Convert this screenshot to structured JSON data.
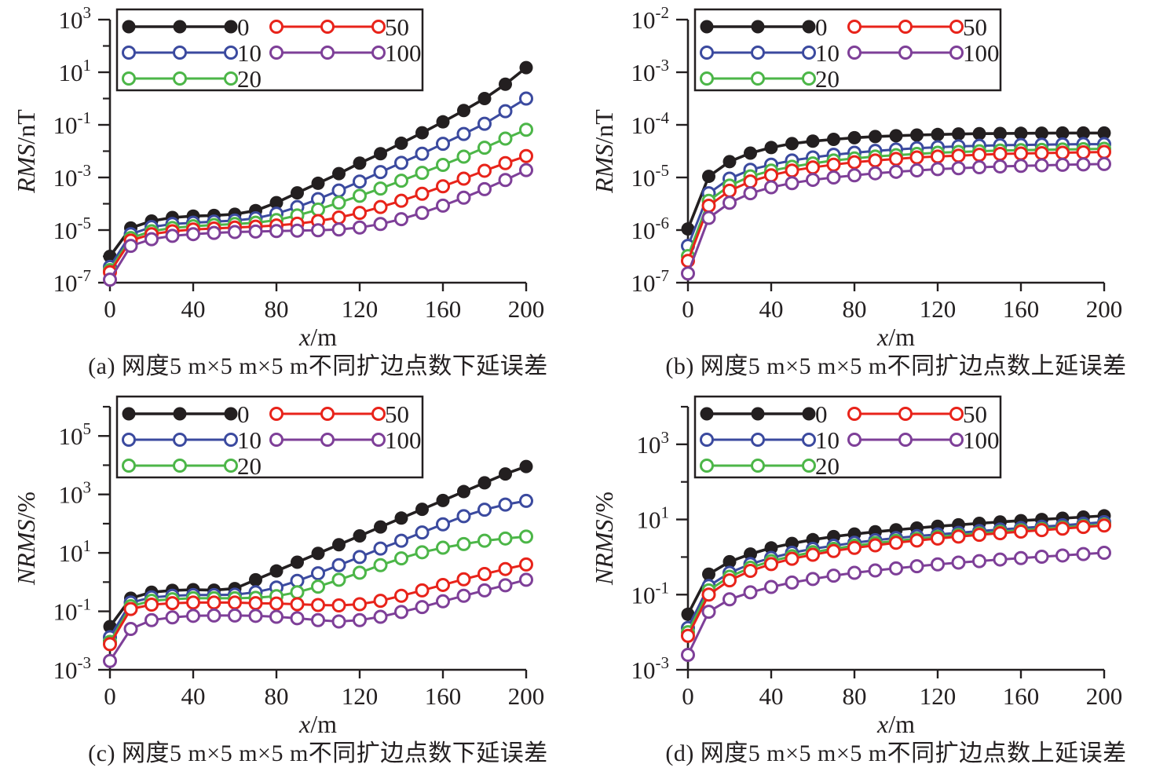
{
  "figure": {
    "background": "#ffffff",
    "axis_color": "#231f20"
  },
  "chart_data": [
    {
      "type": "line",
      "panel": "a",
      "caption": "(a) 网度5 m×5 m×5 m不同扩边点数下延误差",
      "xlabel_italic": "x",
      "xlabel_rest": "/m",
      "ylabel_italic": "RMS",
      "ylabel_rest": "/nT",
      "xlim": [
        0,
        200
      ],
      "xticks": [
        0,
        40,
        80,
        120,
        160,
        200
      ],
      "ylim_exponents": [
        -7,
        3
      ],
      "ytick_exponents": [
        3,
        1,
        -1,
        -3,
        -5,
        -7
      ],
      "yminor_exponents": [
        2,
        0,
        -2,
        -4,
        -6
      ],
      "grid": false,
      "legend_position": "top-left",
      "x": [
        0,
        10,
        20,
        30,
        40,
        50,
        60,
        70,
        80,
        90,
        100,
        110,
        120,
        130,
        140,
        150,
        160,
        170,
        180,
        190,
        200
      ],
      "series": [
        {
          "name": "0",
          "color": "#231f20",
          "marker": "filled",
          "values": [
            1e-06,
            1.2e-05,
            2.2e-05,
            3e-05,
            3.4e-05,
            3.6e-05,
            4e-05,
            5.5e-05,
            0.00011,
            0.00026,
            0.0006,
            0.0014,
            0.0035,
            0.008,
            0.02,
            0.05,
            0.13,
            0.35,
            1.0,
            3.5,
            15
          ]
        },
        {
          "name": "10",
          "color": "#3b4a9f",
          "marker": "open",
          "values": [
            4e-07,
            7e-06,
            1.3e-05,
            1.7e-05,
            1.9e-05,
            2.1e-05,
            2.3e-05,
            2.8e-05,
            4.2e-05,
            7.5e-05,
            0.00015,
            0.00032,
            0.0007,
            0.0016,
            0.0036,
            0.008,
            0.019,
            0.045,
            0.11,
            0.33,
            1.0
          ]
        },
        {
          "name": "20",
          "color": "#4cb648",
          "marker": "open",
          "values": [
            3e-07,
            5e-06,
            9e-06,
            1.2e-05,
            1.4e-05,
            1.55e-05,
            1.7e-05,
            1.9e-05,
            2.4e-05,
            3.6e-05,
            6e-05,
            0.00011,
            0.0002,
            0.00038,
            0.00075,
            0.0015,
            0.003,
            0.0062,
            0.0135,
            0.03,
            0.065
          ]
        },
        {
          "name": "50",
          "color": "#e8231a",
          "marker": "open",
          "values": [
            2.5e-07,
            4e-06,
            7e-06,
            9e-06,
            1.05e-05,
            1.15e-05,
            1.25e-05,
            1.35e-05,
            1.5e-05,
            1.75e-05,
            2.2e-05,
            3e-05,
            4.5e-05,
            7.5e-05,
            0.00013,
            0.00024,
            0.00046,
            0.0009,
            0.0018,
            0.0035,
            0.0065
          ]
        },
        {
          "name": "100",
          "color": "#7e3f98",
          "marker": "open",
          "values": [
            1.3e-07,
            2.5e-06,
            4.5e-06,
            6e-06,
            7e-06,
            7.8e-06,
            8.4e-06,
            8.8e-06,
            9.2e-06,
            9.5e-06,
            9.8e-06,
            1.05e-05,
            1.25e-05,
            1.7e-05,
            2.6e-05,
            4.5e-05,
            8.5e-05,
            0.00017,
            0.00036,
            0.0008,
            0.0019
          ]
        }
      ]
    },
    {
      "type": "line",
      "panel": "b",
      "caption": "(b) 网度5 m×5 m×5 m不同扩边点数上延误差",
      "xlabel_italic": "x",
      "xlabel_rest": "/m",
      "ylabel_italic": "RMS",
      "ylabel_rest": "/nT",
      "xlim": [
        0,
        200
      ],
      "xticks": [
        0,
        40,
        80,
        120,
        160,
        200
      ],
      "ylim_exponents": [
        -7,
        -2
      ],
      "ytick_exponents": [
        -2,
        -3,
        -4,
        -5,
        -6,
        -7
      ],
      "yminor_exponents": [],
      "grid": false,
      "legend_position": "top-left",
      "x": [
        0,
        10,
        20,
        30,
        40,
        50,
        60,
        70,
        80,
        90,
        100,
        110,
        120,
        130,
        140,
        150,
        160,
        170,
        180,
        190,
        200
      ],
      "series": [
        {
          "name": "0",
          "color": "#231f20",
          "marker": "filled",
          "values": [
            1.05e-06,
            1.05e-05,
            2e-05,
            2.9e-05,
            3.7e-05,
            4.4e-05,
            4.9e-05,
            5.3e-05,
            5.7e-05,
            6e-05,
            6.2e-05,
            6.4e-05,
            6.55e-05,
            6.7e-05,
            6.8e-05,
            6.85e-05,
            6.9e-05,
            6.95e-05,
            7e-05,
            7e-05,
            7e-05
          ]
        },
        {
          "name": "10",
          "color": "#3b4a9f",
          "marker": "open",
          "values": [
            5e-07,
            5e-06,
            9.5e-06,
            1.4e-05,
            1.75e-05,
            2.1e-05,
            2.4e-05,
            2.7e-05,
            2.95e-05,
            3.2e-05,
            3.4e-05,
            3.6e-05,
            3.75e-05,
            3.9e-05,
            4e-05,
            4.1e-05,
            4.15e-05,
            4.2e-05,
            4.25e-05,
            4.3e-05,
            4.3e-05
          ]
        },
        {
          "name": "20",
          "color": "#4cb648",
          "marker": "open",
          "values": [
            3.2e-07,
            3.6e-06,
            7e-06,
            1.05e-05,
            1.35e-05,
            1.6e-05,
            1.85e-05,
            2.1e-05,
            2.3e-05,
            2.5e-05,
            2.65e-05,
            2.8e-05,
            2.95e-05,
            3.05e-05,
            3.15e-05,
            3.25e-05,
            3.3e-05,
            3.35e-05,
            3.4e-05,
            3.45e-05,
            3.5e-05
          ]
        },
        {
          "name": "50",
          "color": "#e8231a",
          "marker": "open",
          "values": [
            2.6e-07,
            2.9e-06,
            5.6e-06,
            8.4e-06,
            1.1e-05,
            1.35e-05,
            1.55e-05,
            1.75e-05,
            1.95e-05,
            2.1e-05,
            2.25e-05,
            2.4e-05,
            2.5e-05,
            2.6e-05,
            2.7e-05,
            2.8e-05,
            2.85e-05,
            2.9e-05,
            2.95e-05,
            3e-05,
            3.05e-05
          ]
        },
        {
          "name": "100",
          "color": "#7e3f98",
          "marker": "open",
          "values": [
            1.5e-07,
            1.7e-06,
            3.3e-06,
            5e-06,
            6.5e-06,
            7.8e-06,
            9e-06,
            1e-05,
            1.1e-05,
            1.2e-05,
            1.28e-05,
            1.36e-05,
            1.44e-05,
            1.5e-05,
            1.56e-05,
            1.62e-05,
            1.66e-05,
            1.7e-05,
            1.74e-05,
            1.77e-05,
            1.8e-05
          ]
        }
      ]
    },
    {
      "type": "line",
      "panel": "c",
      "caption": "(c) 网度5 m×5 m×5 m不同扩边点数下延误差",
      "xlabel_italic": "x",
      "xlabel_rest": "/m",
      "ylabel_italic": "NRMS",
      "ylabel_rest": "/%",
      "xlim": [
        0,
        200
      ],
      "xticks": [
        0,
        40,
        80,
        120,
        160,
        200
      ],
      "ylim_exponents": [
        -3,
        6
      ],
      "ytick_exponents": [
        5,
        3,
        1,
        -1,
        -3
      ],
      "yminor_exponents": [
        6,
        4,
        2,
        0,
        -2
      ],
      "grid": false,
      "legend_position": "top-left",
      "x": [
        0,
        10,
        20,
        30,
        40,
        50,
        60,
        70,
        80,
        90,
        100,
        110,
        120,
        130,
        140,
        150,
        160,
        170,
        180,
        190,
        200
      ],
      "series": [
        {
          "name": "0",
          "color": "#231f20",
          "marker": "filled",
          "values": [
            0.03,
            0.28,
            0.45,
            0.52,
            0.55,
            0.53,
            0.6,
            1.2,
            2.4,
            4.8,
            9.6,
            19,
            38,
            77,
            155,
            310,
            620,
            1250,
            2500,
            5000,
            9000
          ]
        },
        {
          "name": "10",
          "color": "#3b4a9f",
          "marker": "open",
          "values": [
            0.013,
            0.2,
            0.3,
            0.34,
            0.36,
            0.36,
            0.37,
            0.45,
            0.65,
            1.1,
            2.0,
            3.8,
            7.2,
            14,
            26,
            50,
            95,
            180,
            300,
            450,
            600
          ]
        },
        {
          "name": "20",
          "color": "#4cb648",
          "marker": "open",
          "values": [
            0.009,
            0.15,
            0.23,
            0.26,
            0.28,
            0.28,
            0.28,
            0.29,
            0.33,
            0.45,
            0.7,
            1.2,
            2.1,
            3.8,
            6.5,
            10.5,
            15,
            20,
            26,
            31,
            36
          ]
        },
        {
          "name": "50",
          "color": "#e8231a",
          "marker": "open",
          "values": [
            0.0075,
            0.12,
            0.17,
            0.19,
            0.2,
            0.2,
            0.2,
            0.19,
            0.185,
            0.175,
            0.165,
            0.16,
            0.175,
            0.23,
            0.34,
            0.52,
            0.8,
            1.25,
            1.9,
            2.8,
            4.0
          ]
        },
        {
          "name": "100",
          "color": "#7e3f98",
          "marker": "open",
          "values": [
            0.002,
            0.025,
            0.05,
            0.062,
            0.07,
            0.072,
            0.072,
            0.07,
            0.065,
            0.058,
            0.05,
            0.045,
            0.05,
            0.065,
            0.095,
            0.14,
            0.22,
            0.34,
            0.52,
            0.78,
            1.2
          ]
        }
      ]
    },
    {
      "type": "line",
      "panel": "d",
      "caption": "(d) 网度5 m×5 m×5 m不同扩边点数上延误差",
      "xlabel_italic": "x",
      "xlabel_rest": "/m",
      "ylabel_italic": "NRMS",
      "ylabel_rest": "/%",
      "xlim": [
        0,
        200
      ],
      "xticks": [
        0,
        40,
        80,
        120,
        160,
        200
      ],
      "ylim_exponents": [
        -3,
        4
      ],
      "ytick_exponents": [
        3,
        1,
        -1,
        -3
      ],
      "yminor_exponents": [
        4,
        2,
        0,
        -2
      ],
      "grid": false,
      "legend_position": "top-left",
      "x": [
        0,
        10,
        20,
        30,
        40,
        50,
        60,
        70,
        80,
        90,
        100,
        110,
        120,
        130,
        140,
        150,
        160,
        170,
        180,
        190,
        200
      ],
      "series": [
        {
          "name": "0",
          "color": "#231f20",
          "marker": "filled",
          "values": [
            0.03,
            0.35,
            0.75,
            1.2,
            1.75,
            2.3,
            2.9,
            3.5,
            4.1,
            4.7,
            5.3,
            5.9,
            6.6,
            7.2,
            7.9,
            8.6,
            9.3,
            10.0,
            10.8,
            11.6,
            12.5
          ]
        },
        {
          "name": "10",
          "color": "#3b4a9f",
          "marker": "open",
          "values": [
            0.013,
            0.17,
            0.38,
            0.65,
            0.95,
            1.3,
            1.65,
            2.0,
            2.4,
            2.8,
            3.2,
            3.6,
            4.0,
            4.4,
            4.9,
            5.4,
            5.9,
            6.4,
            7.0,
            7.7,
            8.5
          ]
        },
        {
          "name": "20",
          "color": "#4cb648",
          "marker": "open",
          "values": [
            0.01,
            0.13,
            0.3,
            0.52,
            0.78,
            1.05,
            1.35,
            1.65,
            2.0,
            2.35,
            2.7,
            3.05,
            3.45,
            3.85,
            4.25,
            4.7,
            5.15,
            5.6,
            6.1,
            6.7,
            7.3
          ]
        },
        {
          "name": "50",
          "color": "#e8231a",
          "marker": "open",
          "values": [
            0.008,
            0.1,
            0.24,
            0.43,
            0.65,
            0.9,
            1.15,
            1.45,
            1.75,
            2.05,
            2.4,
            2.75,
            3.1,
            3.5,
            3.9,
            4.3,
            4.75,
            5.2,
            5.7,
            6.3,
            6.9
          ]
        },
        {
          "name": "100",
          "color": "#7e3f98",
          "marker": "open",
          "values": [
            0.0025,
            0.035,
            0.075,
            0.115,
            0.16,
            0.21,
            0.26,
            0.32,
            0.38,
            0.44,
            0.5,
            0.57,
            0.64,
            0.71,
            0.78,
            0.86,
            0.94,
            1.02,
            1.1,
            1.2,
            1.3
          ]
        }
      ]
    }
  ]
}
